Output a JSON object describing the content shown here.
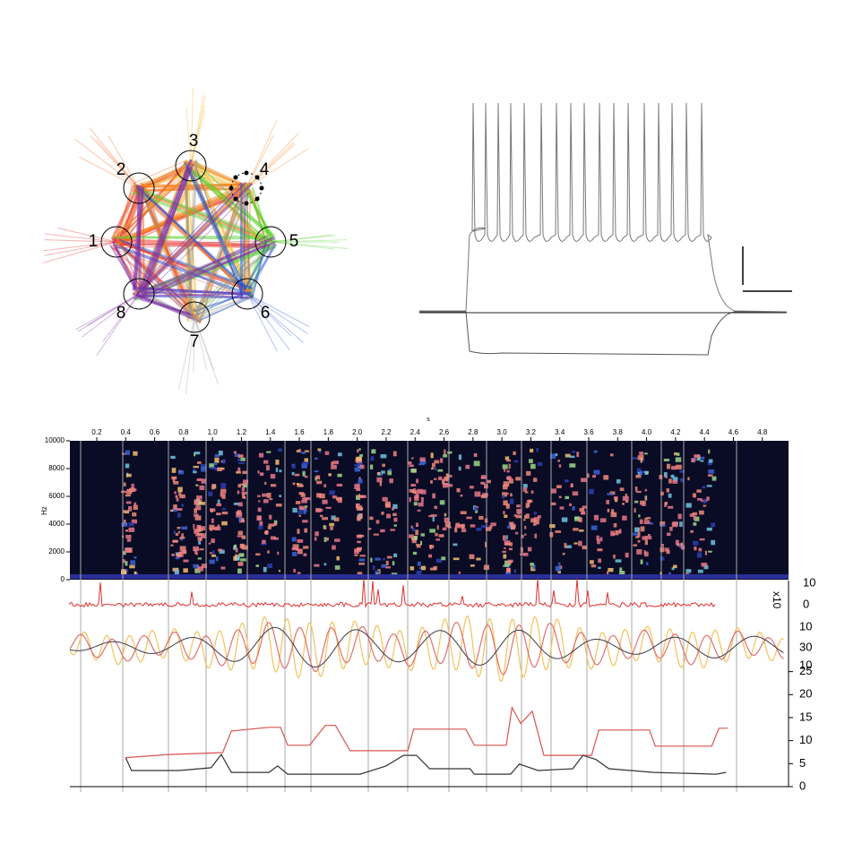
{
  "network": {
    "nodes": [
      "1",
      "2",
      "3",
      "4",
      "5",
      "6",
      "7",
      "8"
    ]
  },
  "spectrogram": {
    "x_label": "s",
    "y_label": "Hz",
    "xlim": [
      0,
      4.95
    ],
    "xticks": [
      0.2,
      0.4,
      0.6,
      0.8,
      {
        "value": 1,
        "label": "1.0"
      },
      1.2,
      1.4,
      1.6,
      1.8,
      {
        "value": 2,
        "label": "2.0"
      },
      2.2,
      2.4,
      2.6,
      2.8,
      {
        "value": 3,
        "label": "3.0"
      },
      3.2,
      3.4,
      3.6,
      3.8,
      {
        "value": 4,
        "label": "4.0"
      },
      4.2,
      4.4,
      4.6,
      4.8
    ],
    "ylim": [
      0,
      10000
    ],
    "yticks": [
      0,
      2000,
      4000,
      6000,
      8000,
      10000
    ]
  },
  "traces": {
    "spike_ticks": [
      10,
      0
    ],
    "spike_unit": "x10",
    "osc_ticks": [
      10,
      30,
      10
    ]
  },
  "rates": {
    "ylim": [
      0,
      37
    ],
    "yticks": [
      0,
      5,
      10,
      15,
      20,
      25
    ],
    "series": [
      {
        "color": "#d9534f",
        "x": [
          0.4,
          0.7,
          1.07,
          1.13,
          1.39,
          1.47,
          1.52,
          1.67,
          1.78,
          1.85,
          1.95,
          2.35,
          2.39,
          2.75,
          2.81,
          3.03,
          3.07,
          3.13,
          3.21,
          3.29,
          3.62,
          3.67,
          4.02,
          4.06,
          4.45,
          4.5,
          4.56
        ],
        "values": [
          6.3,
          7.0,
          7.4,
          12.1,
          12.9,
          12.9,
          9.0,
          9.0,
          13.3,
          13.3,
          7.8,
          7.8,
          12.5,
          12.5,
          9.0,
          9.0,
          17.2,
          13.7,
          16.4,
          6.8,
          6.8,
          12.3,
          12.3,
          8.8,
          8.8,
          12.7,
          12.7
        ]
      },
      {
        "color": "#333333",
        "x": [
          0.4,
          0.44,
          0.77,
          0.99,
          1.06,
          1.13,
          1.39,
          1.45,
          1.52,
          2.02,
          2.2,
          2.32,
          2.41,
          2.5,
          2.78,
          2.81,
          3.06,
          3.12,
          3.25,
          3.49,
          3.56,
          3.65,
          3.74,
          4.05,
          4.48,
          4.55
        ],
        "values": [
          6.3,
          3.5,
          3.5,
          4.1,
          7.0,
          3.1,
          3.1,
          4.5,
          2.7,
          2.7,
          4.5,
          6.8,
          6.8,
          3.9,
          3.9,
          2.7,
          2.7,
          4.9,
          3.5,
          3.9,
          6.8,
          5.9,
          3.9,
          3.1,
          2.7,
          3.1
        ]
      }
    ]
  }
}
